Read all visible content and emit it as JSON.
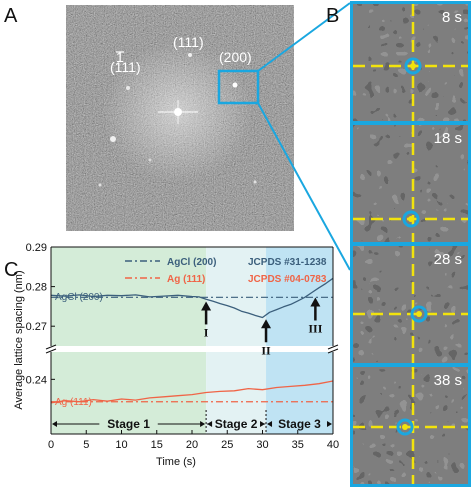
{
  "panels": {
    "a": {
      "letter": "A",
      "spots": [
        {
          "label": "(200)"
        },
        {
          "label": "(111)"
        },
        {
          "label": "(111)",
          "overbar": "1"
        }
      ]
    },
    "b": {
      "letter": "B",
      "frames": [
        {
          "time": "8 s"
        },
        {
          "time": "18 s"
        },
        {
          "time": "28 s"
        },
        {
          "time": "38 s"
        }
      ]
    },
    "c": {
      "letter": "C"
    }
  },
  "colors": {
    "agcl": "#3b5f7c",
    "ag": "#f06446",
    "highlight": "#1aa7e0",
    "crosshair": "#f2e30c"
  },
  "chart_data": {
    "type": "line",
    "xlabel": "Time (s)",
    "ylabel": "Average lattice spacing (nm)",
    "xlim": [
      0,
      40
    ],
    "xticks": [
      0,
      5,
      10,
      15,
      20,
      25,
      30,
      35,
      40
    ],
    "upper_axis": {
      "ylim": [
        0.265,
        0.29
      ],
      "yticks": [
        0.27,
        0.28,
        0.29
      ]
    },
    "lower_axis": {
      "ylim": [
        0.23,
        0.245
      ],
      "yticks": [
        0.24
      ]
    },
    "axis_break": true,
    "legend": [
      {
        "label": "AgCl (200)",
        "reference": "JCPDS #31-1238",
        "color": "#3b5f7c"
      },
      {
        "label": "Ag (111)",
        "reference": "JCPDS #04-0783",
        "color": "#f06446"
      }
    ],
    "series": [
      {
        "name": "AgCl (200)",
        "color": "#3b5f7c",
        "x": [
          0,
          2,
          4,
          6,
          8,
          10,
          12,
          14,
          16,
          18,
          20,
          21,
          22,
          23,
          24,
          25,
          26,
          27,
          28,
          29,
          30,
          31,
          32,
          33,
          34,
          35,
          36,
          37,
          38,
          39,
          40
        ],
        "y": [
          0.2778,
          0.2776,
          0.2779,
          0.2775,
          0.2778,
          0.2777,
          0.2779,
          0.2774,
          0.2776,
          0.2778,
          0.2775,
          0.2774,
          0.2768,
          0.2763,
          0.2757,
          0.2752,
          0.2746,
          0.2738,
          0.2733,
          0.2727,
          0.2722,
          0.2735,
          0.2742,
          0.2749,
          0.2755,
          0.2764,
          0.2773,
          0.2785,
          0.2797,
          0.2808,
          0.2821
        ],
        "reference_value": 0.2773
      },
      {
        "name": "Ag (111)",
        "color": "#f06446",
        "x": [
          0,
          2,
          4,
          6,
          8,
          10,
          12,
          14,
          16,
          18,
          20,
          22,
          24,
          26,
          28,
          30,
          32,
          34,
          36,
          38,
          40
        ],
        "y": [
          0.2357,
          0.2361,
          0.2359,
          0.2363,
          0.236,
          0.2364,
          0.2362,
          0.2366,
          0.2368,
          0.237,
          0.2372,
          0.2376,
          0.2378,
          0.2379,
          0.2383,
          0.2381,
          0.2385,
          0.2387,
          0.2389,
          0.2392,
          0.2397
        ],
        "reference_value": 0.2359
      }
    ],
    "annotations": [
      {
        "label": "I",
        "x": 22,
        "y": 0.276
      },
      {
        "label": "II",
        "x": 30.5,
        "y": 0.2715
      },
      {
        "label": "III",
        "x": 37.5,
        "y": 0.277
      }
    ],
    "stages": [
      {
        "label": "Stage 1",
        "start": 0,
        "end": 22,
        "color": "#d4ecd8"
      },
      {
        "label": "Stage 2",
        "start": 22,
        "end": 30.5,
        "color": "#e3f2f3"
      },
      {
        "label": "Stage 3",
        "start": 30.5,
        "end": 40,
        "color": "#bfe3f3"
      }
    ]
  }
}
